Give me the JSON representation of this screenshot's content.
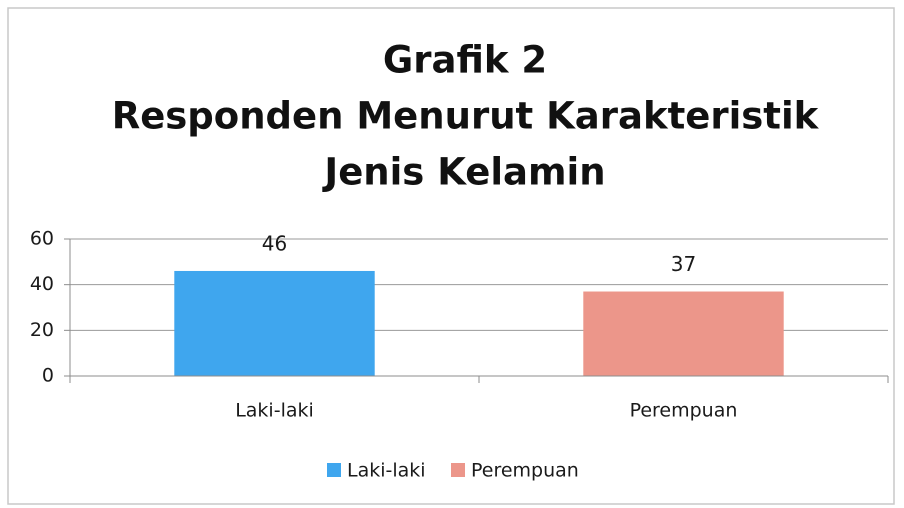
{
  "chart_data": {
    "type": "bar",
    "title": [
      "Grafik 2",
      "Responden Menurut Karakteristik",
      "Jenis Kelamin"
    ],
    "categories": [
      "Laki-laki",
      "Perempuan"
    ],
    "values": [
      46,
      37
    ],
    "colors": [
      "#3fa6ee",
      "#ec968a"
    ],
    "ylim": [
      0,
      60
    ],
    "yticks": [
      0,
      20,
      40,
      60
    ],
    "grid": true,
    "legend": "bottom"
  }
}
